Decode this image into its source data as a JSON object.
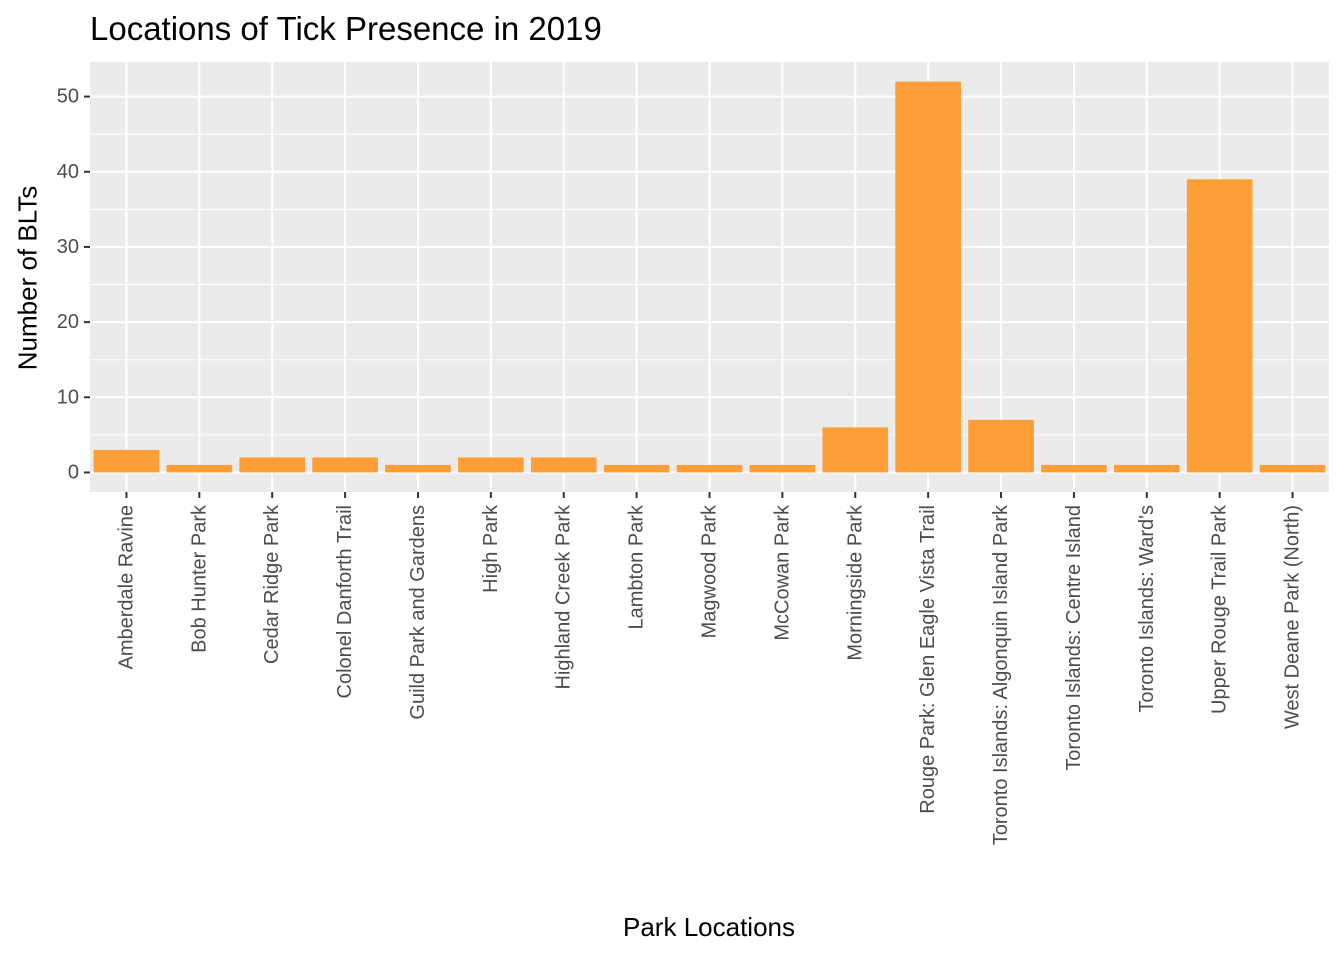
{
  "chart_data": {
    "type": "bar",
    "title": "Locations of Tick Presence in 2019",
    "xlabel": "Park Locations",
    "ylabel": "Number of BLTs",
    "categories": [
      "Amberdale Ravine",
      "Bob Hunter Park",
      "Cedar Ridge Park",
      "Colonel Danforth Trail",
      "Guild Park and Gardens",
      "High Park",
      "Highland Creek Park",
      "Lambton Park",
      "Magwood Park",
      "McCowan Park",
      "Morningside Park",
      "Rouge Park: Glen Eagle Vista Trail",
      "Toronto Islands: Algonquin Island Park",
      "Toronto Islands: Centre Island",
      "Toronto Islands: Ward's",
      "Upper Rouge Trail Park",
      "West Deane Park (North)"
    ],
    "values": [
      3,
      1,
      2,
      2,
      1,
      2,
      2,
      1,
      1,
      1,
      6,
      52,
      7,
      1,
      1,
      39,
      1
    ],
    "ylim": [
      -2.6,
      54.6
    ],
    "yticks": [
      0,
      10,
      20,
      30,
      40,
      50
    ],
    "grid": true,
    "legend": "none",
    "colors": {
      "bar": "#FF9D37",
      "panel": "#EBEBEB",
      "grid": "#FFFFFF",
      "tick_label": "#4D4D4D",
      "tick_mark": "#333333"
    }
  }
}
